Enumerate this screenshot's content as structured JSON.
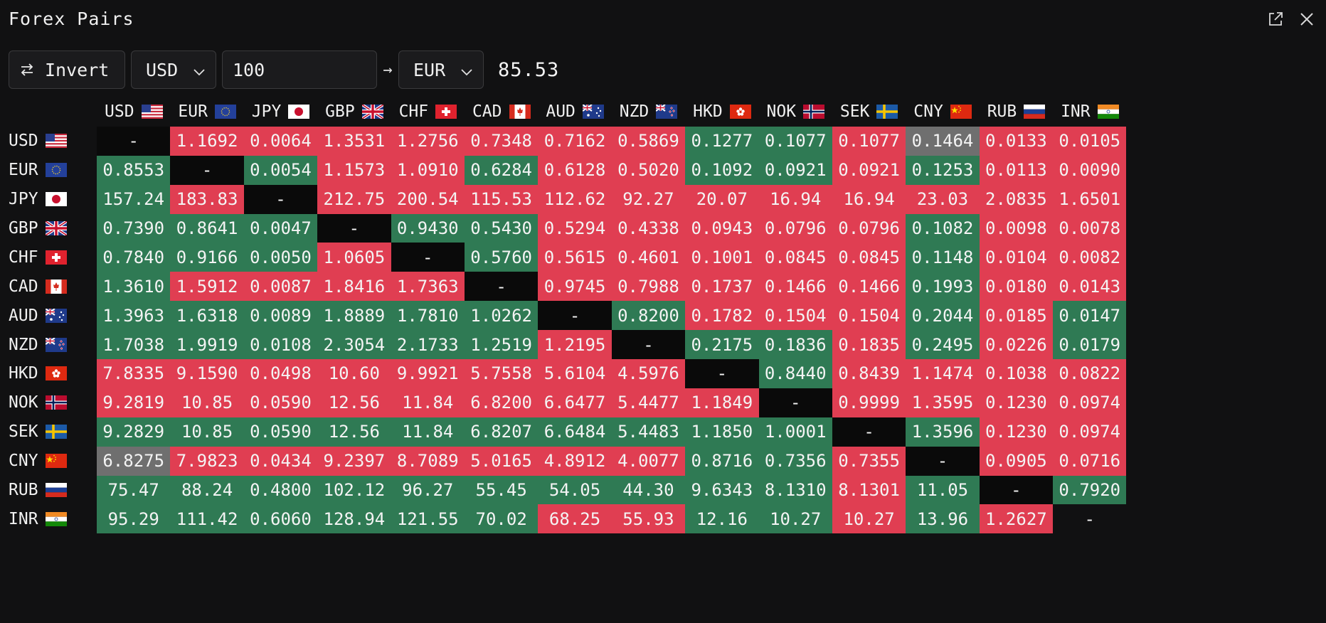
{
  "window": {
    "title": "Forex Pairs",
    "icons": [
      "external-link-icon",
      "close-icon"
    ]
  },
  "toolbar": {
    "invert_label": "Invert",
    "from_currency": "USD",
    "amount": "100",
    "arrow": "→",
    "to_currency": "EUR",
    "result": "85.53"
  },
  "colors": {
    "up": "#2f7a54",
    "down": "#e03e52",
    "unchanged": "#6f6f6f",
    "diagonal": "#0a0a0a"
  },
  "currencies": [
    {
      "code": "USD",
      "flag": "us-flag-icon"
    },
    {
      "code": "EUR",
      "flag": "eu-flag-icon"
    },
    {
      "code": "JPY",
      "flag": "jp-flag-icon"
    },
    {
      "code": "GBP",
      "flag": "gb-flag-icon"
    },
    {
      "code": "CHF",
      "flag": "ch-flag-icon"
    },
    {
      "code": "CAD",
      "flag": "ca-flag-icon"
    },
    {
      "code": "AUD",
      "flag": "au-flag-icon"
    },
    {
      "code": "NZD",
      "flag": "nz-flag-icon"
    },
    {
      "code": "HKD",
      "flag": "hk-flag-icon"
    },
    {
      "code": "NOK",
      "flag": "no-flag-icon"
    },
    {
      "code": "SEK",
      "flag": "se-flag-icon"
    },
    {
      "code": "CNY",
      "flag": "cn-flag-icon"
    },
    {
      "code": "RUB",
      "flag": "ru-flag-icon"
    },
    {
      "code": "INR",
      "flag": "in-flag-icon"
    }
  ],
  "matrix": [
    [
      "-",
      "1.1692",
      "0.0064",
      "1.3531",
      "1.2756",
      "0.7348",
      "0.7162",
      "0.5869",
      "0.1277",
      "0.1077",
      "0.1077",
      "0.1464",
      "0.0133",
      "0.0105"
    ],
    [
      "0.8553",
      "-",
      "0.0054",
      "1.1573",
      "1.0910",
      "0.6284",
      "0.6128",
      "0.5020",
      "0.1092",
      "0.0921",
      "0.0921",
      "0.1253",
      "0.0113",
      "0.0090"
    ],
    [
      "157.24",
      "183.83",
      "-",
      "212.75",
      "200.54",
      "115.53",
      "112.62",
      "92.27",
      "20.07",
      "16.94",
      "16.94",
      "23.03",
      "2.0835",
      "1.6501"
    ],
    [
      "0.7390",
      "0.8641",
      "0.0047",
      "-",
      "0.9430",
      "0.5430",
      "0.5294",
      "0.4338",
      "0.0943",
      "0.0796",
      "0.0796",
      "0.1082",
      "0.0098",
      "0.0078"
    ],
    [
      "0.7840",
      "0.9166",
      "0.0050",
      "1.0605",
      "-",
      "0.5760",
      "0.5615",
      "0.4601",
      "0.1001",
      "0.0845",
      "0.0845",
      "0.1148",
      "0.0104",
      "0.0082"
    ],
    [
      "1.3610",
      "1.5912",
      "0.0087",
      "1.8416",
      "1.7363",
      "-",
      "0.9745",
      "0.7988",
      "0.1737",
      "0.1466",
      "0.1466",
      "0.1993",
      "0.0180",
      "0.0143"
    ],
    [
      "1.3963",
      "1.6318",
      "0.0089",
      "1.8889",
      "1.7810",
      "1.0262",
      "-",
      "0.8200",
      "0.1782",
      "0.1504",
      "0.1504",
      "0.2044",
      "0.0185",
      "0.0147"
    ],
    [
      "1.7038",
      "1.9919",
      "0.0108",
      "2.3054",
      "2.1733",
      "1.2519",
      "1.2195",
      "-",
      "0.2175",
      "0.1836",
      "0.1835",
      "0.2495",
      "0.0226",
      "0.0179"
    ],
    [
      "7.8335",
      "9.1590",
      "0.0498",
      "10.60",
      "9.9921",
      "5.7558",
      "5.6104",
      "4.5976",
      "-",
      "0.8440",
      "0.8439",
      "1.1474",
      "0.1038",
      "0.0822"
    ],
    [
      "9.2819",
      "10.85",
      "0.0590",
      "12.56",
      "11.84",
      "6.8200",
      "6.6477",
      "5.4477",
      "1.1849",
      "-",
      "0.9999",
      "1.3595",
      "0.1230",
      "0.0974"
    ],
    [
      "9.2829",
      "10.85",
      "0.0590",
      "12.56",
      "11.84",
      "6.8207",
      "6.6484",
      "5.4483",
      "1.1850",
      "1.0001",
      "-",
      "1.3596",
      "0.1230",
      "0.0974"
    ],
    [
      "6.8275",
      "7.9823",
      "0.0434",
      "9.2397",
      "8.7089",
      "5.0165",
      "4.8912",
      "4.0077",
      "0.8716",
      "0.7356",
      "0.7355",
      "-",
      "0.0905",
      "0.0716"
    ],
    [
      "75.47",
      "88.24",
      "0.4800",
      "102.12",
      "96.27",
      "55.45",
      "54.05",
      "44.30",
      "9.6343",
      "8.1310",
      "8.1301",
      "11.05",
      "-",
      "0.7920"
    ],
    [
      "95.29",
      "111.42",
      "0.6060",
      "128.94",
      "121.55",
      "70.02",
      "68.25",
      "55.93",
      "12.16",
      "10.27",
      "10.27",
      "13.96",
      "1.2627",
      "-"
    ]
  ],
  "change": [
    [
      "self",
      "down",
      "down",
      "down",
      "down",
      "down",
      "down",
      "down",
      "up",
      "up",
      "down",
      "flat",
      "down",
      "down"
    ],
    [
      "up",
      "self",
      "up",
      "down",
      "down",
      "up",
      "down",
      "down",
      "up",
      "up",
      "down",
      "up",
      "down",
      "down"
    ],
    [
      "up",
      "down",
      "self",
      "down",
      "down",
      "down",
      "down",
      "down",
      "down",
      "down",
      "down",
      "down",
      "down",
      "down"
    ],
    [
      "up",
      "up",
      "up",
      "self",
      "up",
      "up",
      "down",
      "down",
      "down",
      "down",
      "down",
      "up",
      "down",
      "down"
    ],
    [
      "up",
      "up",
      "up",
      "down",
      "self",
      "up",
      "down",
      "down",
      "down",
      "down",
      "down",
      "up",
      "down",
      "down"
    ],
    [
      "up",
      "down",
      "down",
      "down",
      "down",
      "self",
      "down",
      "down",
      "down",
      "down",
      "down",
      "up",
      "down",
      "down"
    ],
    [
      "up",
      "up",
      "up",
      "up",
      "up",
      "up",
      "self",
      "up",
      "down",
      "down",
      "down",
      "up",
      "down",
      "up"
    ],
    [
      "up",
      "up",
      "up",
      "up",
      "up",
      "up",
      "down",
      "self",
      "up",
      "up",
      "down",
      "up",
      "down",
      "up"
    ],
    [
      "down",
      "down",
      "down",
      "down",
      "down",
      "down",
      "down",
      "down",
      "self",
      "up",
      "down",
      "down",
      "down",
      "down"
    ],
    [
      "down",
      "down",
      "down",
      "down",
      "down",
      "down",
      "down",
      "down",
      "down",
      "self",
      "down",
      "down",
      "down",
      "down"
    ],
    [
      "up",
      "up",
      "up",
      "up",
      "up",
      "up",
      "up",
      "up",
      "up",
      "up",
      "self",
      "up",
      "down",
      "down"
    ],
    [
      "flat",
      "down",
      "down",
      "down",
      "down",
      "down",
      "down",
      "down",
      "up",
      "up",
      "down",
      "self",
      "down",
      "down"
    ],
    [
      "up",
      "up",
      "up",
      "up",
      "up",
      "up",
      "up",
      "up",
      "up",
      "up",
      "down",
      "up",
      "self",
      "up"
    ],
    [
      "up",
      "up",
      "up",
      "up",
      "up",
      "up",
      "down",
      "down",
      "up",
      "up",
      "down",
      "up",
      "down",
      "blank"
    ]
  ]
}
